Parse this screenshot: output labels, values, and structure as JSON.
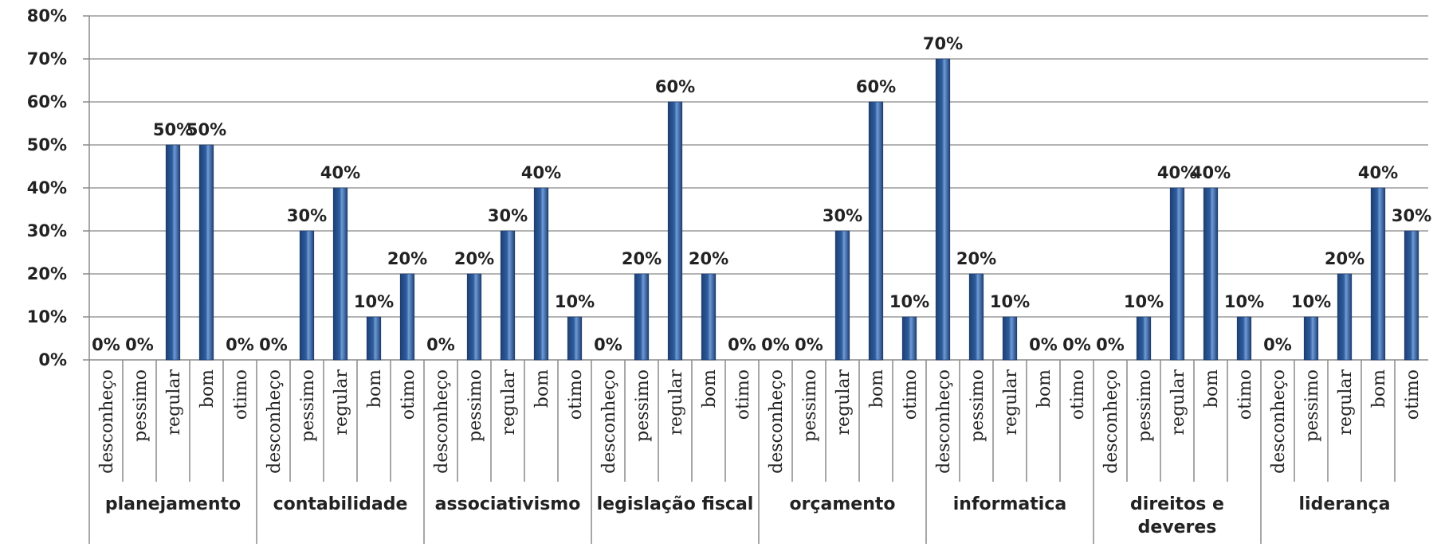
{
  "chart_data": {
    "type": "bar",
    "title": "",
    "xlabel": "",
    "ylabel": "",
    "ylim": [
      0,
      80
    ],
    "y_ticks": [
      "0%",
      "10%",
      "20%",
      "30%",
      "40%",
      "50%",
      "60%",
      "70%",
      "80%"
    ],
    "grid": true,
    "legend": "none",
    "bar_color": "#2f5d9e",
    "categories": [
      "desconheço",
      "pessimo",
      "regular",
      "bom",
      "otimo"
    ],
    "groups": [
      {
        "name": "planejamento",
        "values": [
          0,
          0,
          50,
          50,
          0
        ]
      },
      {
        "name": "contabilidade",
        "values": [
          0,
          30,
          40,
          10,
          20
        ]
      },
      {
        "name": "associativismo",
        "values": [
          0,
          20,
          30,
          40,
          10
        ]
      },
      {
        "name": "legislação fiscal",
        "values": [
          0,
          20,
          60,
          20,
          0
        ]
      },
      {
        "name": "orçamento",
        "values": [
          0,
          0,
          30,
          60,
          10
        ]
      },
      {
        "name": "informatica",
        "values": [
          70,
          20,
          10,
          0,
          0
        ]
      },
      {
        "name": "direitos e deveres",
        "values": [
          0,
          10,
          40,
          40,
          10
        ]
      },
      {
        "name": "liderança",
        "values": [
          0,
          10,
          20,
          40,
          30
        ]
      }
    ]
  }
}
